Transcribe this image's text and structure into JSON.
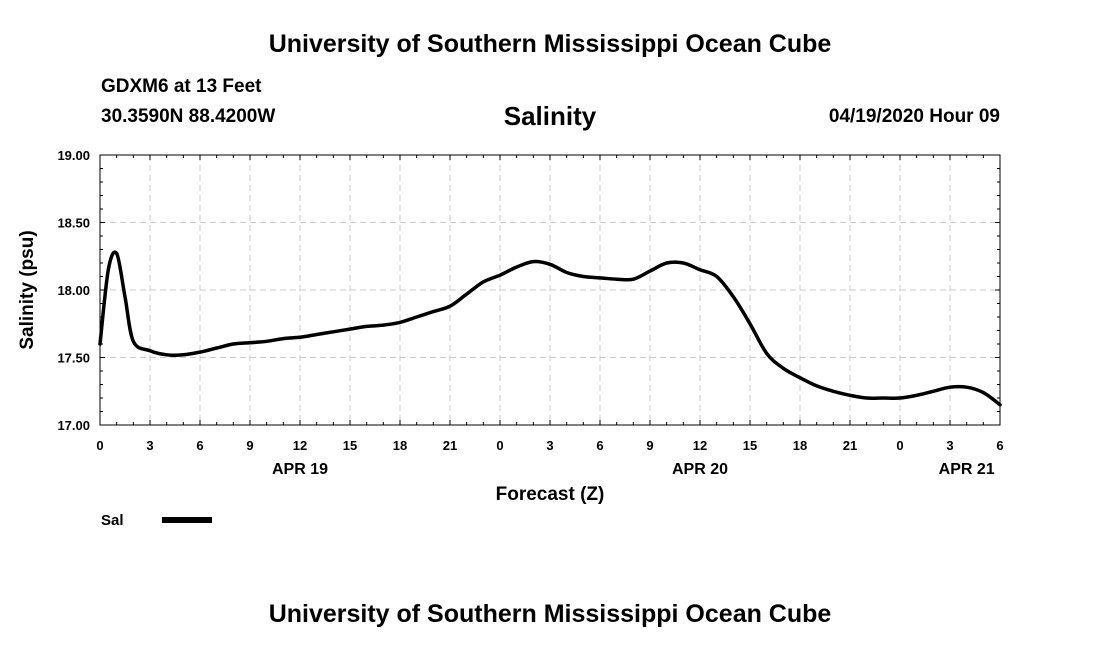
{
  "header": {
    "title": "University of Southern Mississippi Ocean Cube",
    "station": "GDXM6 at 13 Feet",
    "coords": "30.3590N 88.4200W",
    "variable": "Salinity",
    "datetime": "04/19/2020 Hour 09"
  },
  "footer": {
    "title": "University of Southern Mississippi Ocean Cube"
  },
  "colors": {
    "line": "#000000",
    "grid": "#c8c8c8"
  },
  "chart_data": {
    "type": "line",
    "title": "Salinity",
    "xlabel": "Forecast (Z)",
    "ylabel": "Salinity (psu)",
    "xlim": [
      0,
      54
    ],
    "ylim": [
      17.0,
      19.0
    ],
    "grid": true,
    "x_ticks": [
      0,
      3,
      6,
      9,
      12,
      15,
      18,
      21,
      24,
      27,
      30,
      33,
      36,
      39,
      42,
      45,
      48,
      51,
      54
    ],
    "x_tick_labels": [
      "0",
      "3",
      "6",
      "9",
      "12",
      "15",
      "18",
      "21",
      "0",
      "3",
      "6",
      "9",
      "12",
      "15",
      "18",
      "21",
      "0",
      "3",
      "6"
    ],
    "y_ticks": [
      17.0,
      17.5,
      18.0,
      18.5,
      19.0
    ],
    "y_tick_labels": [
      "17.00",
      "17.50",
      "18.00",
      "18.50",
      "19.00"
    ],
    "date_labels": [
      {
        "label": "APR 19",
        "x": 12
      },
      {
        "label": "APR 20",
        "x": 36
      },
      {
        "label": "APR 21",
        "x": 52
      }
    ],
    "legend": {
      "placement": "bottom-left",
      "entries": [
        "Sal"
      ]
    },
    "series": [
      {
        "name": "Sal",
        "x": [
          0,
          0.5,
          1,
          1.5,
          2,
          3,
          4,
          5,
          6,
          7,
          8,
          9,
          10,
          11,
          12,
          13,
          14,
          15,
          16,
          17,
          18,
          19,
          20,
          21,
          22,
          23,
          24,
          25,
          26,
          27,
          28,
          29,
          30,
          31,
          32,
          33,
          34,
          35,
          36,
          37,
          38,
          39,
          40,
          41,
          42,
          43,
          44,
          45,
          46,
          47,
          48,
          49,
          50,
          51,
          52,
          53,
          54
        ],
        "values": [
          17.6,
          18.15,
          18.27,
          17.95,
          17.62,
          17.55,
          17.52,
          17.52,
          17.54,
          17.57,
          17.6,
          17.61,
          17.62,
          17.64,
          17.65,
          17.67,
          17.69,
          17.71,
          17.73,
          17.74,
          17.76,
          17.8,
          17.84,
          17.88,
          17.97,
          18.06,
          18.11,
          18.17,
          18.21,
          18.19,
          18.13,
          18.1,
          18.09,
          18.08,
          18.08,
          18.14,
          18.2,
          18.2,
          18.15,
          18.1,
          17.95,
          17.75,
          17.53,
          17.42,
          17.35,
          17.29,
          17.25,
          17.22,
          17.2,
          17.2,
          17.2,
          17.22,
          17.25,
          17.28,
          17.28,
          17.24,
          17.15
        ]
      }
    ]
  }
}
